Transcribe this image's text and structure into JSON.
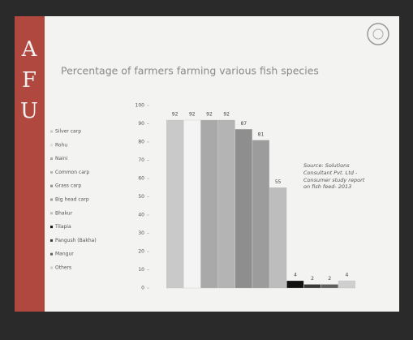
{
  "sidebar": {
    "letters": [
      "A",
      "F",
      "U"
    ]
  },
  "chart_data": {
    "type": "bar",
    "title": "Percentage of farmers farming various fish species",
    "categories": [
      "Silver carp",
      "Rohu",
      "Naini",
      "Common carp",
      "Grass carp",
      "Big head carp",
      "Bhakur",
      "Tilapia",
      "Pangush (Bakha)",
      "Mangur",
      "Others"
    ],
    "values": [
      92,
      92,
      92,
      92,
      87,
      81,
      55,
      4,
      2,
      2,
      4
    ],
    "colors": [
      "#c9c9c9",
      "#f4f4f4",
      "#a9a9a9",
      "#b4b4b4",
      "#8e8e8e",
      "#9c9c9c",
      "#bdbdbd",
      "#111111",
      "#3a3a3a",
      "#5f5f5f",
      "#cfcfcf"
    ],
    "ylim": [
      0,
      100
    ],
    "yticks": [
      0,
      10,
      20,
      30,
      40,
      50,
      60,
      70,
      80,
      90,
      100
    ],
    "grid": false,
    "legend": "left",
    "annotations": [
      "Source: Solutions Consultant Pvt. Ltd - Consumer study report on fish feed- 2013"
    ]
  }
}
